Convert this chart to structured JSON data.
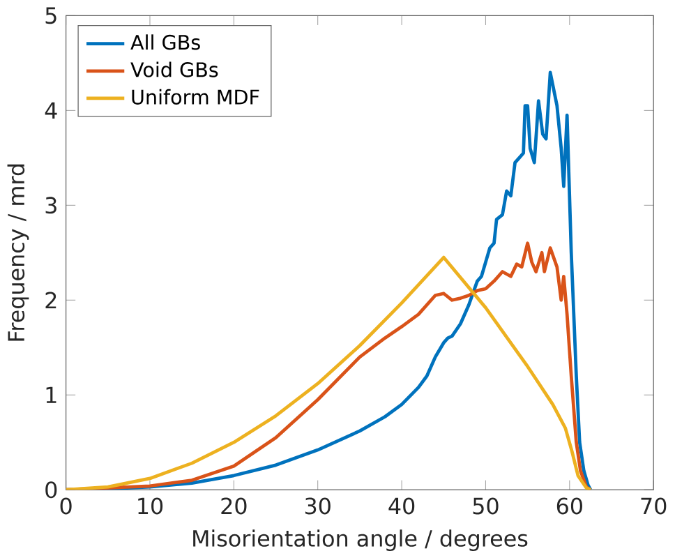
{
  "chart_data": {
    "type": "line",
    "xlabel": "Misorientation angle / degrees",
    "ylabel": "Frequency / mrd",
    "xlim": [
      0,
      70
    ],
    "xticks": [
      0,
      10,
      20,
      30,
      40,
      50,
      60,
      70
    ],
    "ylim": [
      0,
      5
    ],
    "yticks": [
      0,
      1,
      2,
      3,
      4,
      5
    ],
    "grid": false,
    "legend": "top left",
    "marker": "none",
    "line_style": "solid",
    "series": [
      {
        "name": "All GBs",
        "color": "#0072bd",
        "x": [
          0,
          5,
          10,
          15,
          20,
          25,
          30,
          35,
          38,
          40,
          42,
          43,
          44,
          45,
          45.5,
          46,
          47,
          48,
          49,
          49.5,
          50,
          50.5,
          51,
          51.3,
          52,
          52.5,
          53,
          53.5,
          54,
          54.5,
          54.7,
          55,
          55.3,
          55.8,
          56.3,
          56.8,
          57.2,
          57.7,
          58.5,
          59,
          59.3,
          59.7,
          60.2,
          60.8,
          61.2,
          61.7,
          62.2,
          62.5
        ],
        "values": [
          0,
          0.01,
          0.03,
          0.07,
          0.15,
          0.26,
          0.42,
          0.62,
          0.77,
          0.9,
          1.08,
          1.2,
          1.4,
          1.55,
          1.6,
          1.62,
          1.75,
          1.95,
          2.2,
          2.25,
          2.4,
          2.55,
          2.6,
          2.85,
          2.9,
          3.15,
          3.1,
          3.45,
          3.5,
          3.55,
          4.05,
          4.05,
          3.6,
          3.45,
          4.1,
          3.75,
          3.7,
          4.4,
          4.05,
          3.6,
          3.2,
          3.95,
          2.5,
          1.2,
          0.5,
          0.2,
          0.05,
          0
        ]
      },
      {
        "name": "Void GBs",
        "color": "#d95319",
        "x": [
          0,
          5,
          10,
          15,
          20,
          25,
          30,
          35,
          38,
          40,
          42,
          44,
          45,
          46,
          47,
          48,
          49,
          50,
          51,
          52,
          53,
          53.7,
          54.3,
          55,
          55.5,
          56,
          56.7,
          57,
          57.7,
          58.5,
          59,
          59.3,
          59.7,
          60.2,
          60.8,
          61.3,
          62,
          62.5
        ],
        "values": [
          0,
          0.02,
          0.04,
          0.1,
          0.25,
          0.55,
          0.95,
          1.4,
          1.6,
          1.72,
          1.85,
          2.05,
          2.07,
          2.0,
          2.02,
          2.05,
          2.1,
          2.12,
          2.2,
          2.3,
          2.25,
          2.38,
          2.35,
          2.6,
          2.4,
          2.3,
          2.5,
          2.3,
          2.55,
          2.35,
          2.0,
          2.25,
          1.85,
          1.2,
          0.5,
          0.2,
          0.03,
          0
        ]
      },
      {
        "name": "Uniform MDF",
        "color": "#edb120",
        "x": [
          0,
          5,
          10,
          15,
          20,
          25,
          30,
          35,
          40,
          45,
          50,
          55,
          58,
          59.5,
          60.3,
          61,
          62,
          62.5
        ],
        "values": [
          0,
          0.03,
          0.12,
          0.28,
          0.5,
          0.78,
          1.12,
          1.52,
          1.97,
          2.45,
          1.92,
          1.3,
          0.9,
          0.65,
          0.4,
          0.15,
          0.02,
          0
        ]
      }
    ]
  }
}
